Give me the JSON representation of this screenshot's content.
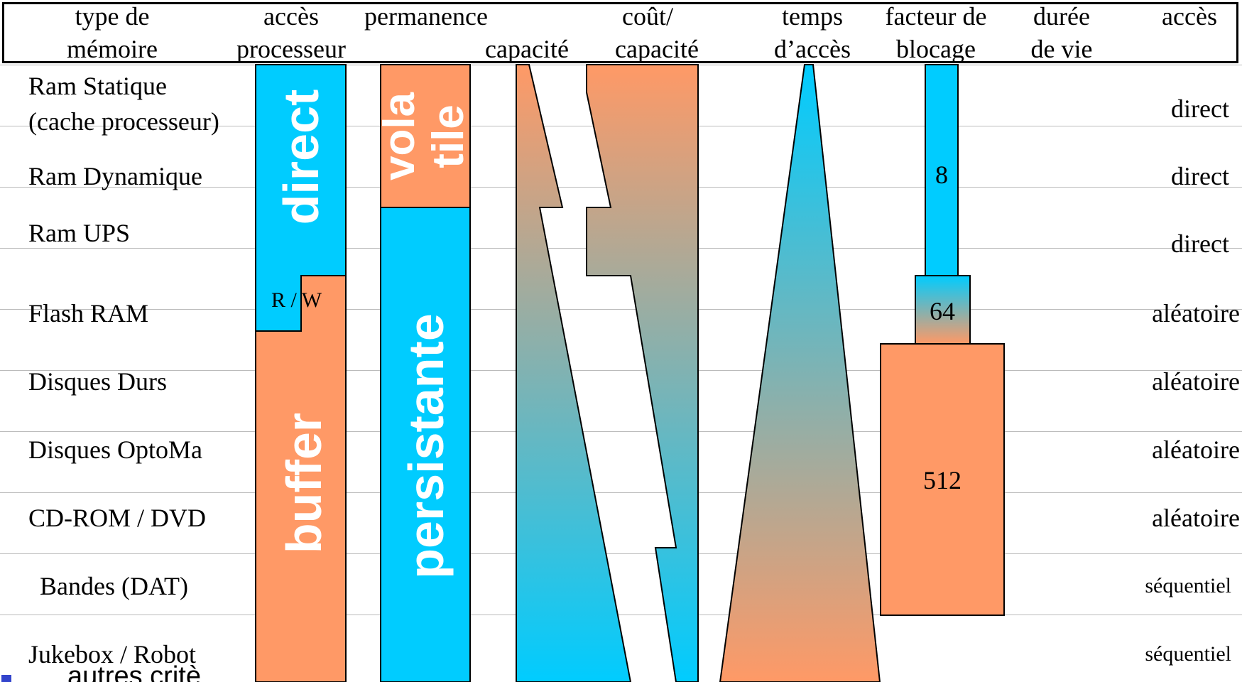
{
  "header": {
    "col_type": [
      "type de",
      "mémoire"
    ],
    "col_acces_processeur": [
      "accès",
      "processeur"
    ],
    "col_permanence": "permanence",
    "col_capacite": "capacité",
    "col_cout": [
      "coût/",
      "capacité"
    ],
    "col_temps": [
      "temps",
      "d’accès"
    ],
    "col_facteur": [
      "facteur de",
      "blocage"
    ],
    "col_duree": [
      "durée",
      "de vie"
    ],
    "col_acces": "accès"
  },
  "rows": [
    {
      "label": [
        "Ram Statique",
        "(cache processeur)"
      ],
      "acces": "direct"
    },
    {
      "label": [
        "Ram Dynamique"
      ],
      "acces": "direct"
    },
    {
      "label": [
        "Ram UPS"
      ],
      "acces": "direct"
    },
    {
      "label": [
        "Flash RAM"
      ],
      "acces": "aléatoire"
    },
    {
      "label": [
        "Disques Durs"
      ],
      "acces": "aléatoire"
    },
    {
      "label": [
        "Disques OptoMa"
      ],
      "acces": "aléatoire"
    },
    {
      "label": [
        "CD-ROM / DVD"
      ],
      "acces": "aléatoire"
    },
    {
      "label": [
        "Bandes (DAT)"
      ],
      "acces": "séquentiel"
    },
    {
      "label": [
        "Jukebox / Robot"
      ],
      "acces": "séquentiel"
    }
  ],
  "bars": {
    "acces_direct": "direct",
    "acces_buffer": "buffer",
    "rw": "R / W",
    "perm_volatile": [
      "vola",
      "tile"
    ],
    "perm_persistante": "persistante",
    "blocage_values": [
      "8",
      "64",
      "512"
    ]
  },
  "colors": {
    "blue": "#00ccff",
    "orange": "#ff9966",
    "border": "#000000"
  },
  "footer": {
    "text": "autres critè"
  }
}
